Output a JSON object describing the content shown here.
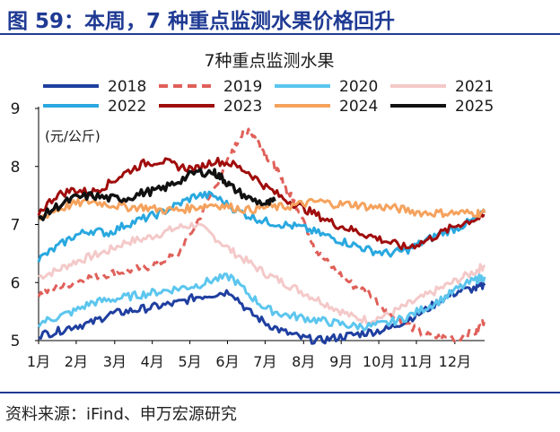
{
  "figure_title": "图 59：本周，7 种重点监测水果价格回升",
  "source": "资料来源：iFind、申万宏源研究",
  "chart_data": {
    "type": "line",
    "title": "7种重点监测水果",
    "ylabel": "(元/公斤)",
    "xlabel": "",
    "ylim": [
      5,
      9
    ],
    "yticks": [
      5,
      6,
      7,
      8,
      9
    ],
    "x_unit_note": "week of year (1-52)",
    "categories": [
      "1月",
      "2月",
      "3月",
      "4月",
      "5月",
      "6月",
      "7月",
      "8月",
      "9月",
      "10月",
      "11月",
      "12月"
    ],
    "category_weeks": [
      1,
      5.3,
      9.7,
      14,
      18.3,
      22.6,
      26.9,
      31.3,
      35.6,
      39.9,
      44.2,
      48.6
    ],
    "legend_placement": "top",
    "grid": false,
    "series": [
      {
        "name": "2018",
        "color": "#1F3FA0",
        "dash": "solid",
        "x": [
          1,
          3,
          5,
          7,
          9,
          11,
          13,
          15,
          17,
          19,
          21,
          23,
          25,
          27,
          29,
          31,
          33,
          35,
          37,
          39,
          41,
          43,
          45,
          47,
          49,
          51,
          52
        ],
        "y": [
          5.1,
          5.15,
          5.25,
          5.3,
          5.45,
          5.5,
          5.55,
          5.6,
          5.65,
          5.75,
          5.8,
          5.85,
          5.5,
          5.3,
          5.15,
          5.05,
          5.0,
          5.05,
          5.1,
          5.15,
          5.2,
          5.35,
          5.5,
          5.7,
          5.85,
          5.9,
          5.95
        ]
      },
      {
        "name": "2019",
        "color": "#E0605A",
        "dash": "dashed",
        "x": [
          1,
          3,
          5,
          7,
          9,
          11,
          13,
          15,
          17,
          19,
          21,
          23,
          24,
          25,
          26,
          27,
          28,
          29,
          30,
          31,
          32,
          33,
          35,
          37,
          39,
          41,
          43,
          45,
          47,
          49,
          51,
          52
        ],
        "y": [
          5.8,
          5.9,
          6.0,
          6.1,
          6.15,
          6.2,
          6.25,
          6.35,
          6.5,
          7.0,
          7.6,
          8.2,
          8.5,
          8.65,
          8.45,
          8.2,
          8.0,
          7.7,
          7.45,
          7.2,
          6.8,
          6.5,
          6.2,
          5.95,
          5.8,
          5.5,
          5.3,
          5.1,
          5.05,
          5.05,
          5.15,
          5.35
        ]
      },
      {
        "name": "2020",
        "color": "#5CC6EE",
        "dash": "solid",
        "x": [
          1,
          3,
          5,
          7,
          9,
          11,
          13,
          15,
          17,
          19,
          21,
          23,
          25,
          27,
          29,
          31,
          33,
          35,
          37,
          39,
          41,
          43,
          45,
          47,
          49,
          51,
          52
        ],
        "y": [
          5.3,
          5.4,
          5.5,
          5.65,
          5.7,
          5.75,
          5.8,
          5.85,
          5.9,
          5.95,
          6.05,
          6.1,
          5.8,
          5.55,
          5.45,
          5.4,
          5.35,
          5.3,
          5.25,
          5.25,
          5.3,
          5.4,
          5.55,
          5.7,
          5.9,
          6.05,
          6.1
        ]
      },
      {
        "name": "2021",
        "color": "#F4C9C9",
        "dash": "solid",
        "x": [
          1,
          3,
          5,
          7,
          9,
          11,
          13,
          15,
          17,
          19,
          21,
          23,
          25,
          27,
          29,
          31,
          33,
          35,
          37,
          39,
          41,
          43,
          45,
          47,
          49,
          51,
          52
        ],
        "y": [
          6.1,
          6.2,
          6.35,
          6.45,
          6.55,
          6.7,
          6.75,
          6.85,
          6.95,
          7.0,
          6.8,
          6.55,
          6.35,
          6.15,
          6.0,
          5.85,
          5.7,
          5.55,
          5.4,
          5.35,
          5.45,
          5.6,
          5.75,
          5.9,
          6.05,
          6.2,
          6.3
        ]
      },
      {
        "name": "2022",
        "color": "#29A8DF",
        "dash": "solid",
        "x": [
          1,
          3,
          5,
          7,
          9,
          11,
          13,
          15,
          17,
          19,
          21,
          23,
          25,
          27,
          29,
          31,
          33,
          35,
          37,
          39,
          41,
          43,
          45,
          47,
          49,
          51,
          52
        ],
        "y": [
          6.4,
          6.6,
          6.8,
          6.9,
          6.85,
          7.0,
          7.1,
          7.2,
          7.35,
          7.5,
          7.5,
          7.3,
          7.15,
          7.05,
          7.0,
          6.95,
          6.85,
          6.75,
          6.65,
          6.55,
          6.5,
          6.55,
          6.7,
          6.85,
          6.95,
          7.1,
          7.2
        ]
      },
      {
        "name": "2023",
        "color": "#A00C0C",
        "dash": "solid",
        "x": [
          1,
          3,
          5,
          7,
          9,
          11,
          13,
          15,
          17,
          19,
          21,
          23,
          25,
          27,
          29,
          31,
          33,
          35,
          37,
          39,
          41,
          43,
          45,
          47,
          49,
          51,
          52
        ],
        "y": [
          7.2,
          7.5,
          7.6,
          7.55,
          7.7,
          7.9,
          8.05,
          8.1,
          8.0,
          7.95,
          8.1,
          8.05,
          7.9,
          7.65,
          7.45,
          7.3,
          7.15,
          7.0,
          6.9,
          6.8,
          6.7,
          6.6,
          6.7,
          6.85,
          7.0,
          7.1,
          7.15
        ]
      },
      {
        "name": "2024",
        "color": "#F5A25D",
        "dash": "solid",
        "x": [
          1,
          3,
          5,
          7,
          9,
          11,
          13,
          15,
          17,
          19,
          21,
          23,
          25,
          27,
          29,
          31,
          33,
          35,
          37,
          39,
          41,
          43,
          45,
          47,
          49,
          51,
          52
        ],
        "y": [
          7.1,
          7.25,
          7.35,
          7.4,
          7.35,
          7.3,
          7.3,
          7.25,
          7.25,
          7.3,
          7.35,
          7.3,
          7.25,
          7.3,
          7.3,
          7.35,
          7.4,
          7.35,
          7.35,
          7.3,
          7.3,
          7.25,
          7.2,
          7.2,
          7.2,
          7.2,
          7.2
        ]
      },
      {
        "name": "2025",
        "color": "#111111",
        "dash": "solid",
        "x": [
          1,
          3,
          5,
          7,
          9,
          11,
          13,
          15,
          17,
          19,
          21,
          22,
          23,
          25,
          27,
          28
        ],
        "y": [
          7.1,
          7.3,
          7.45,
          7.5,
          7.45,
          7.45,
          7.55,
          7.6,
          7.75,
          7.9,
          7.9,
          7.8,
          7.65,
          7.45,
          7.35,
          7.4
        ]
      }
    ]
  }
}
